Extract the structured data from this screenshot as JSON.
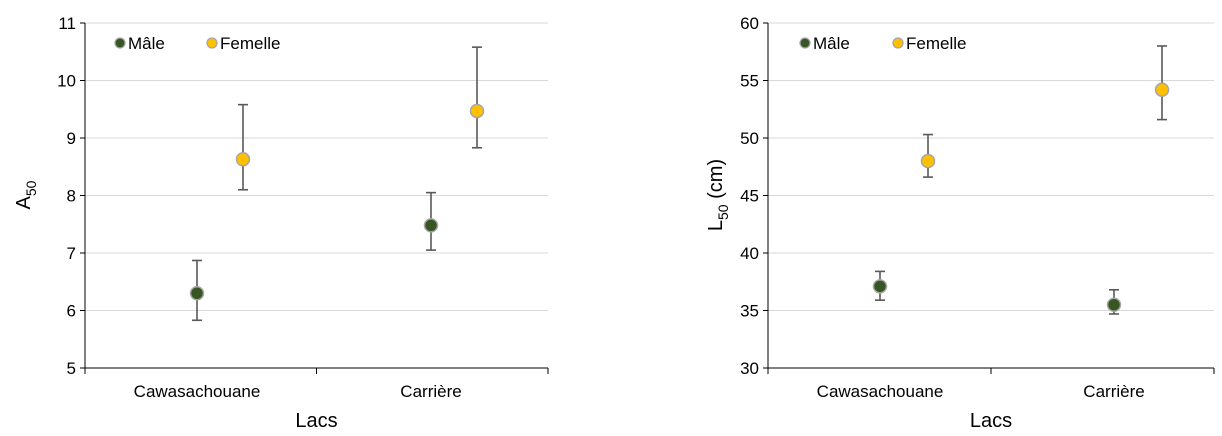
{
  "chart_data": [
    {
      "type": "scatter",
      "title": "",
      "xlabel": "Lacs",
      "ylabel": "A",
      "ylabel_sub": "50",
      "ylabel_suffix": "",
      "ylim": [
        5,
        11
      ],
      "yticks": [
        5,
        6,
        7,
        8,
        9,
        10,
        11
      ],
      "grid": true,
      "legend": "top-left",
      "categories": [
        "Cawasachouane",
        "Carrière"
      ],
      "series": [
        {
          "name": "Mâle",
          "color": "#375623",
          "values": [
            6.3,
            7.48
          ],
          "err_low": [
            5.83,
            7.05
          ],
          "err_high": [
            6.87,
            8.05
          ]
        },
        {
          "name": "Femelle",
          "color": "#ffc000",
          "values": [
            8.63,
            9.47
          ],
          "err_low": [
            8.1,
            8.83
          ],
          "err_high": [
            9.58,
            10.58
          ]
        }
      ]
    },
    {
      "type": "scatter",
      "title": "",
      "xlabel": "Lacs",
      "ylabel": "L",
      "ylabel_sub": "50",
      "ylabel_suffix": " (cm)",
      "ylim": [
        30,
        60
      ],
      "yticks": [
        30,
        35,
        40,
        45,
        50,
        55,
        60
      ],
      "grid": true,
      "legend": "top-left",
      "categories": [
        "Cawasachouane",
        "Carrière"
      ],
      "series": [
        {
          "name": "Mâle",
          "color": "#375623",
          "values": [
            37.1,
            35.5
          ],
          "err_low": [
            35.9,
            34.7
          ],
          "err_high": [
            38.4,
            36.8
          ]
        },
        {
          "name": "Femelle",
          "color": "#ffc000",
          "values": [
            48.0,
            54.2
          ],
          "err_low": [
            46.6,
            51.6
          ],
          "err_high": [
            50.3,
            58.0
          ]
        }
      ]
    }
  ]
}
